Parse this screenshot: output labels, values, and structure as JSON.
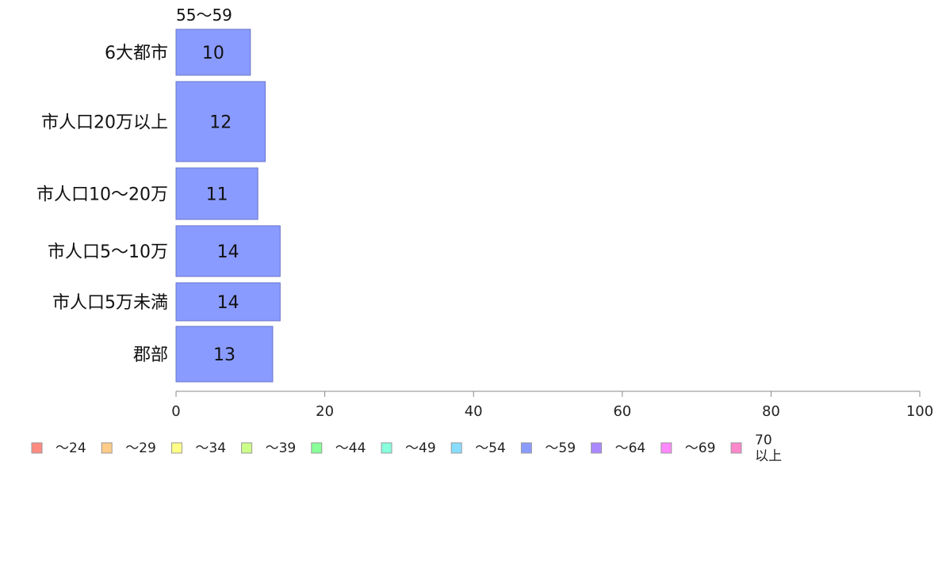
{
  "chart_data": {
    "type": "bar",
    "orientation": "horizontal",
    "series_label": "55〜59",
    "categories": [
      "6大都市",
      "市人口20万以上",
      "市人口10〜20万",
      "市人口5〜10万",
      "市人口5万未満",
      "郡部"
    ],
    "values": [
      10,
      12,
      11,
      14,
      14,
      13
    ],
    "bar_color": "#8a9bff",
    "xlim": [
      0,
      100
    ],
    "xticks": [
      0,
      20,
      40,
      60,
      80,
      100
    ],
    "grid": false,
    "legend_position": "bottom",
    "legend": [
      {
        "label": "〜24",
        "color": "#ff8a80"
      },
      {
        "label": "〜29",
        "color": "#ffcc88"
      },
      {
        "label": "〜34",
        "color": "#ffff88"
      },
      {
        "label": "〜39",
        "color": "#ccff88"
      },
      {
        "label": "〜44",
        "color": "#88ff99"
      },
      {
        "label": "〜49",
        "color": "#88ffdd"
      },
      {
        "label": "〜54",
        "color": "#88ddff"
      },
      {
        "label": "〜59",
        "color": "#8a9bff"
      },
      {
        "label": "〜64",
        "color": "#aa88ff"
      },
      {
        "label": "〜69",
        "color": "#ff88ff"
      },
      {
        "label": "70\n以上",
        "color": "#ff88cc"
      }
    ]
  }
}
